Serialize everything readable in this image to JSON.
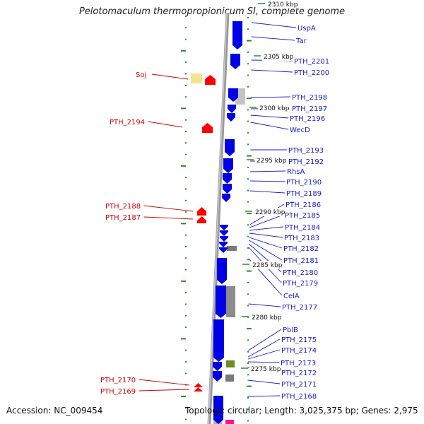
{
  "title": "Pelotomaculum thermopropionicum SI, complete genome",
  "footer": {
    "accession": "Accession: NC_009454",
    "summary": "Topology: circular; Length: 3,025,375 bp; Genes: 2,975"
  },
  "colors": {
    "reverse_gene": "#ff0000",
    "forward_gene": "#0000e6",
    "backbone": "#808080",
    "tick_mark": "#2a8c2a",
    "label_right": "#1a1acc",
    "label_left": "#cc0000",
    "cog_yellow": "#f0e68c",
    "cog_gray": "#8c8c8c",
    "cog_olive": "#6b8e23",
    "cog_magenta": "#ff1493"
  },
  "scale_labels": [
    "2310 kbp",
    "2305 kbp",
    "2300 kbp",
    "2295 kbp",
    "2290 kbp",
    "2285 kbp",
    "2280 kbp",
    "2275 kbp"
  ],
  "right_labels": [
    "UspA",
    "Tar",
    "PTH_2201",
    "PTH_2200",
    "PTH_2198",
    "PTH_2197",
    "PTH_2196",
    "WecD",
    "PTH_2193",
    "PTH_2192",
    "RhsA",
    "PTH_2190",
    "PTH_2189",
    "PTH_2186",
    "PTH_2185",
    "PTH_2184",
    "PTH_2183",
    "PTH_2182",
    "PTH_2181",
    "PTH_2180",
    "PTH_2179",
    "CelA",
    "PTH_2177",
    "PblB",
    "PTH_2175",
    "PTH_2174",
    "PTH_2173",
    "PTH_2172",
    "PTH_2171",
    "PTH_2168"
  ],
  "left_labels": [
    "Soj",
    "PTH_2194",
    "PTH_2188",
    "PTH_2187",
    "PTH_2170",
    "PTH_2169"
  ]
}
